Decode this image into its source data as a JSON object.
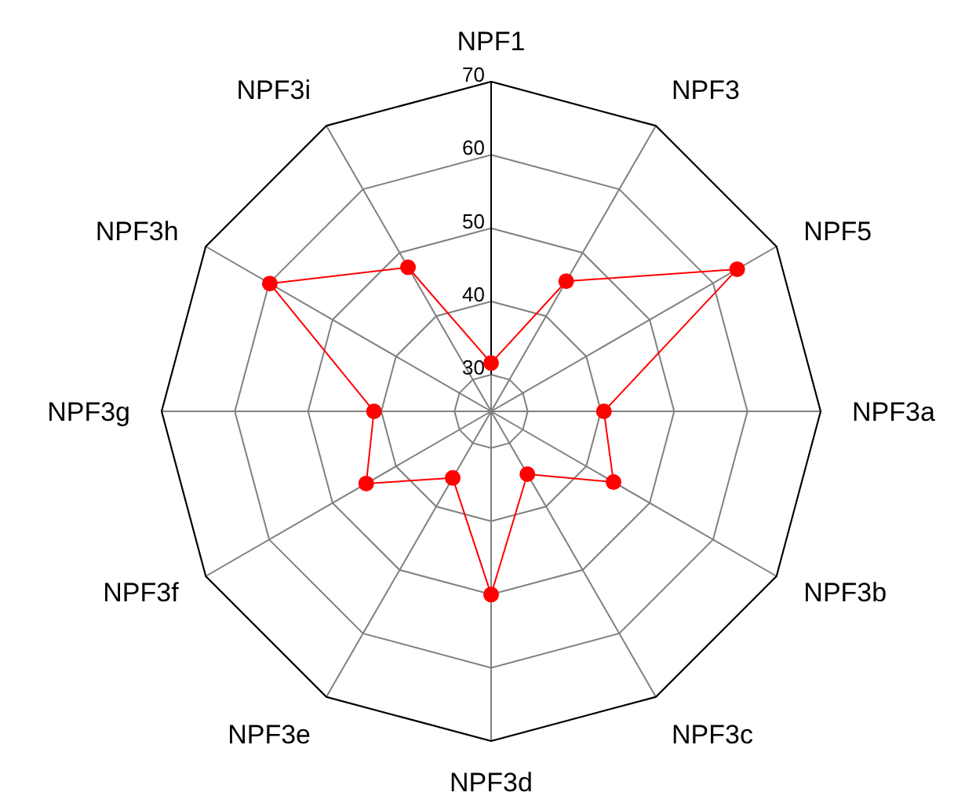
{
  "chart_data": {
    "type": "radar",
    "categories": [
      "NPF1",
      "NPF3",
      "NPF5",
      "NPF3a",
      "NPF3b",
      "NPF3c",
      "NPF3d",
      "NPF3e",
      "NPF3f",
      "NPF3g",
      "NPF3h",
      "NPF3i"
    ],
    "series": [
      {
        "color": "#ff0000",
        "values": [
          31.6,
          45.5,
          63.8,
          40.4,
          44.3,
          34.9,
          50,
          35.5,
          44.7,
          41,
          59.9,
          47.7
        ]
      }
    ],
    "ylim": [
      25,
      70
    ],
    "yticks": [
      30,
      40,
      50,
      60,
      70
    ],
    "grid": true,
    "marker": "circle"
  }
}
